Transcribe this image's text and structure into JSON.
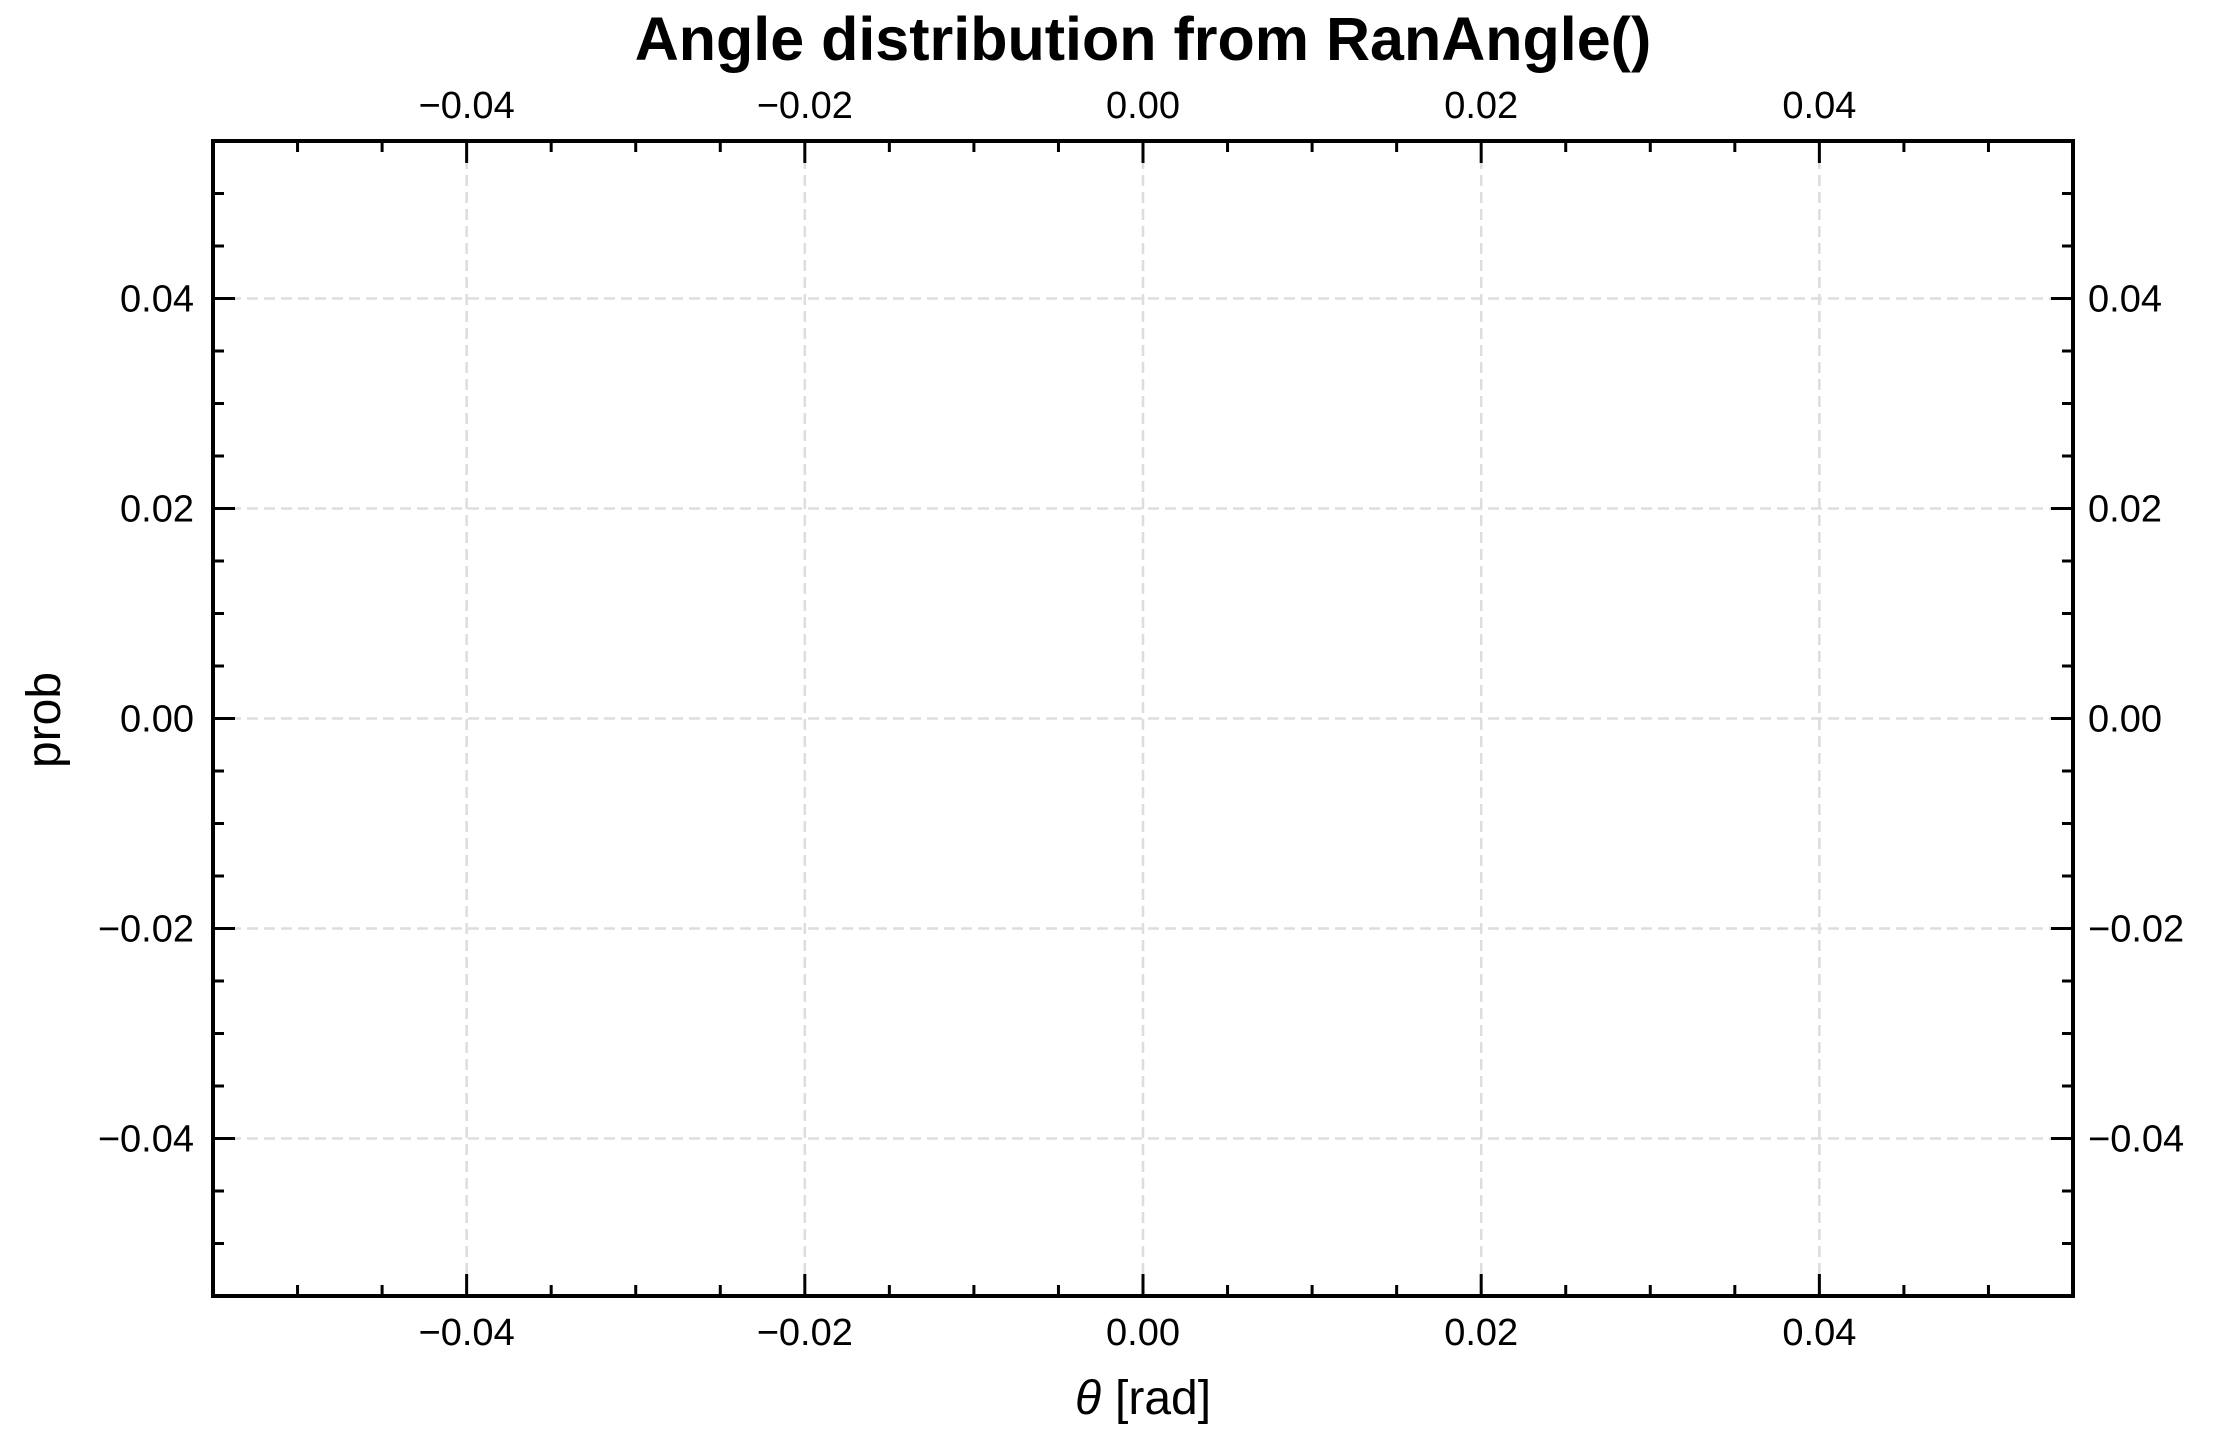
{
  "chart_data": {
    "type": "line",
    "title": "Angle distribution from RanAngle()",
    "xlabel_symbol": "θ",
    "xlabel_unit": "[rad]",
    "ylabel": "prob",
    "xlim": [
      -0.055,
      0.055
    ],
    "ylim": [
      -0.055,
      0.055
    ],
    "x_ticks": [
      -0.04,
      -0.02,
      0.0,
      0.02,
      0.04
    ],
    "x_tick_labels": [
      "−0.04",
      "−0.02",
      "0.00",
      "0.02",
      "0.04"
    ],
    "x_minor_step": 0.005,
    "y_ticks": [
      -0.04,
      -0.02,
      0.0,
      0.02,
      0.04
    ],
    "y_tick_labels": [
      "−0.04",
      "−0.02",
      "0.00",
      "0.02",
      "0.04"
    ],
    "y_minor_step": 0.005,
    "grid": true,
    "tick_labels_on_all_sides": true,
    "series": []
  }
}
